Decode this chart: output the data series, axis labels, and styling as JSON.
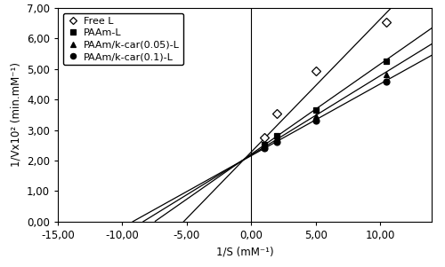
{
  "title": "",
  "xlabel": "1/S (mM⁻¹)",
  "ylabel": "1/Vx10² (min.mM⁻¹)",
  "xlim": [
    -15,
    14
  ],
  "ylim": [
    0,
    7
  ],
  "xticks": [
    -15,
    -10,
    -5,
    0,
    5,
    10
  ],
  "yticks": [
    0,
    1,
    2,
    3,
    4,
    5,
    6,
    7
  ],
  "xticklabels": [
    "-15,00",
    "-10,00",
    "-5,00",
    "0,00",
    "5,00",
    "10,00"
  ],
  "yticklabels": [
    "0,00",
    "1,00",
    "2,00",
    "3,00",
    "4,00",
    "5,00",
    "6,00",
    "7,00"
  ],
  "series": [
    {
      "label": "Free L",
      "marker": "D",
      "marker_fill": "white",
      "marker_edge": "black",
      "x_data": [
        1.0,
        2.0,
        5.0,
        10.5
      ],
      "y_data": [
        2.75,
        3.55,
        4.95,
        6.55
      ],
      "line_slope": 0.435,
      "line_intercept": 2.28
    },
    {
      "label": "PAAm-L",
      "marker": "s",
      "marker_fill": "black",
      "marker_edge": "black",
      "x_data": [
        1.0,
        2.0,
        5.0,
        10.5
      ],
      "y_data": [
        2.52,
        2.82,
        3.65,
        5.25
      ],
      "line_slope": 0.295,
      "line_intercept": 2.21
    },
    {
      "label": "PAAm/k-car(0.05)-L",
      "marker": "^",
      "marker_fill": "black",
      "marker_edge": "black",
      "x_data": [
        1.0,
        2.0,
        5.0,
        10.5
      ],
      "y_data": [
        2.45,
        2.72,
        3.45,
        4.82
      ],
      "line_slope": 0.26,
      "line_intercept": 2.18
    },
    {
      "label": "PAAm/k-car(0.1)-L",
      "marker": "o",
      "marker_fill": "black",
      "marker_edge": "black",
      "x_data": [
        1.0,
        2.0,
        5.0,
        10.5
      ],
      "y_data": [
        2.4,
        2.62,
        3.3,
        4.6
      ],
      "line_slope": 0.235,
      "line_intercept": 2.16
    }
  ],
  "vline_x": 0,
  "background_color": "white",
  "font_size": 8.5
}
